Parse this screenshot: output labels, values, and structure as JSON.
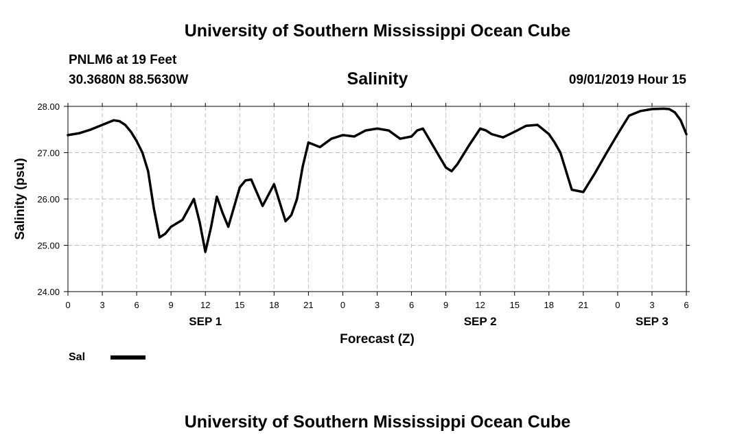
{
  "header": {
    "title": "University of Southern Mississippi Ocean Cube",
    "station": "PNLM6 at 19 Feet",
    "coords": "30.3680N 88.5630W",
    "datetime": "09/01/2019 Hour 15"
  },
  "footer": {
    "title": "University of Southern Mississippi Ocean Cube"
  },
  "chart_data": {
    "type": "line",
    "title": "Salinity",
    "xlabel": "Forecast (Z)",
    "ylabel": "Salinity (psu)",
    "xlim": [
      0,
      54
    ],
    "ylim": [
      24,
      28
    ],
    "grid": true,
    "x_tick_labels": [
      "0",
      "3",
      "6",
      "9",
      "12",
      "15",
      "18",
      "21",
      "0",
      "3",
      "6",
      "9",
      "12",
      "15",
      "18",
      "21",
      "0",
      "3",
      "6"
    ],
    "y_ticks": [
      24,
      25,
      26,
      27,
      28
    ],
    "y_tick_labels": [
      "24.00",
      "25.00",
      "26.00",
      "27.00",
      "28.00"
    ],
    "date_labels": [
      {
        "label": "SEP 1",
        "hour": 12
      },
      {
        "label": "SEP 2",
        "hour": 36
      },
      {
        "label": "SEP 3",
        "hour": 51
      }
    ],
    "legend_position": "bottom-left",
    "series": [
      {
        "name": "Sal",
        "x": [
          0,
          1,
          2,
          3,
          4,
          4.5,
          5,
          5.5,
          6,
          6.5,
          7,
          7.5,
          8,
          8.5,
          9,
          10,
          11,
          11.5,
          12,
          12.5,
          13,
          13.5,
          14,
          15,
          15.5,
          16,
          17,
          18,
          19,
          19.5,
          20,
          20.5,
          21,
          22,
          23,
          24,
          25,
          26,
          27,
          28,
          29,
          30,
          30.5,
          31,
          32,
          33,
          33.5,
          34,
          35,
          36,
          36.5,
          37,
          38,
          39,
          40,
          41,
          42,
          42.5,
          43,
          44,
          45,
          46,
          47,
          48,
          48.5,
          49,
          50,
          51,
          52,
          52.5,
          53,
          53.5,
          54
        ],
        "values": [
          27.38,
          27.42,
          27.5,
          27.6,
          27.7,
          27.68,
          27.6,
          27.45,
          27.25,
          27.0,
          26.6,
          25.8,
          25.17,
          25.25,
          25.4,
          25.55,
          26.0,
          25.5,
          24.86,
          25.4,
          26.05,
          25.7,
          25.4,
          26.25,
          26.4,
          26.42,
          25.85,
          26.32,
          25.52,
          25.65,
          26.0,
          26.7,
          27.22,
          27.12,
          27.3,
          27.38,
          27.35,
          27.48,
          27.52,
          27.48,
          27.3,
          27.35,
          27.48,
          27.52,
          27.1,
          26.68,
          26.6,
          26.75,
          27.15,
          27.52,
          27.48,
          27.4,
          27.33,
          27.45,
          27.58,
          27.6,
          27.4,
          27.22,
          27.0,
          26.2,
          26.15,
          26.55,
          26.98,
          27.4,
          27.6,
          27.8,
          27.9,
          27.94,
          27.95,
          27.94,
          27.87,
          27.7,
          27.4
        ]
      }
    ]
  }
}
